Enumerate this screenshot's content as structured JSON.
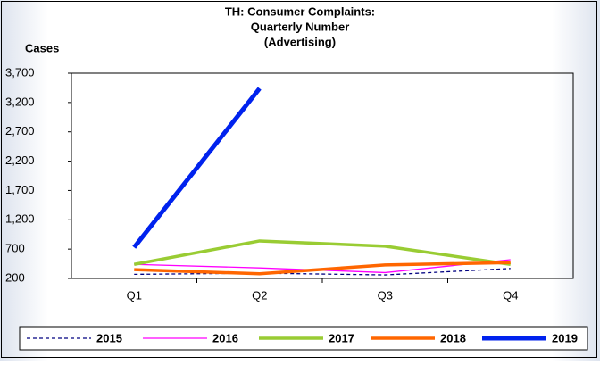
{
  "chart_data": {
    "type": "line",
    "title": [
      "TH: Consumer Complaints:",
      "Quarterly Number",
      "(Advertising)"
    ],
    "y_label": "Cases",
    "categories": [
      "Q1",
      "Q2",
      "Q3",
      "Q4"
    ],
    "ylim": [
      200,
      3700
    ],
    "yticks": [
      {
        "value": 200,
        "label": "200"
      },
      {
        "value": 700,
        "label": "700"
      },
      {
        "value": 1200,
        "label": "1,200"
      },
      {
        "value": 1700,
        "label": "1,700"
      },
      {
        "value": 2200,
        "label": "2,200"
      },
      {
        "value": 2700,
        "label": "2,700"
      },
      {
        "value": 3200,
        "label": "3,200"
      },
      {
        "value": 3700,
        "label": "3,700"
      }
    ],
    "grid": false,
    "legend": "bottom",
    "series": [
      {
        "name": "2015",
        "color": "#000080",
        "line_width": 1.3,
        "dashed": true,
        "values": [
          270,
          290,
          260,
          370
        ]
      },
      {
        "name": "2016",
        "color": "#ff00ff",
        "line_width": 1.3,
        "dashed": false,
        "values": [
          440,
          380,
          300,
          520
        ]
      },
      {
        "name": "2017",
        "color": "#99cc33",
        "line_width": 3.5,
        "dashed": false,
        "values": [
          440,
          840,
          750,
          440
        ]
      },
      {
        "name": "2018",
        "color": "#ff6600",
        "line_width": 3.5,
        "dashed": false,
        "values": [
          350,
          280,
          430,
          470
        ]
      },
      {
        "name": "2019",
        "color": "#0022ee",
        "line_width": 5,
        "dashed": false,
        "values": [
          730,
          3440,
          null,
          null
        ]
      }
    ]
  }
}
